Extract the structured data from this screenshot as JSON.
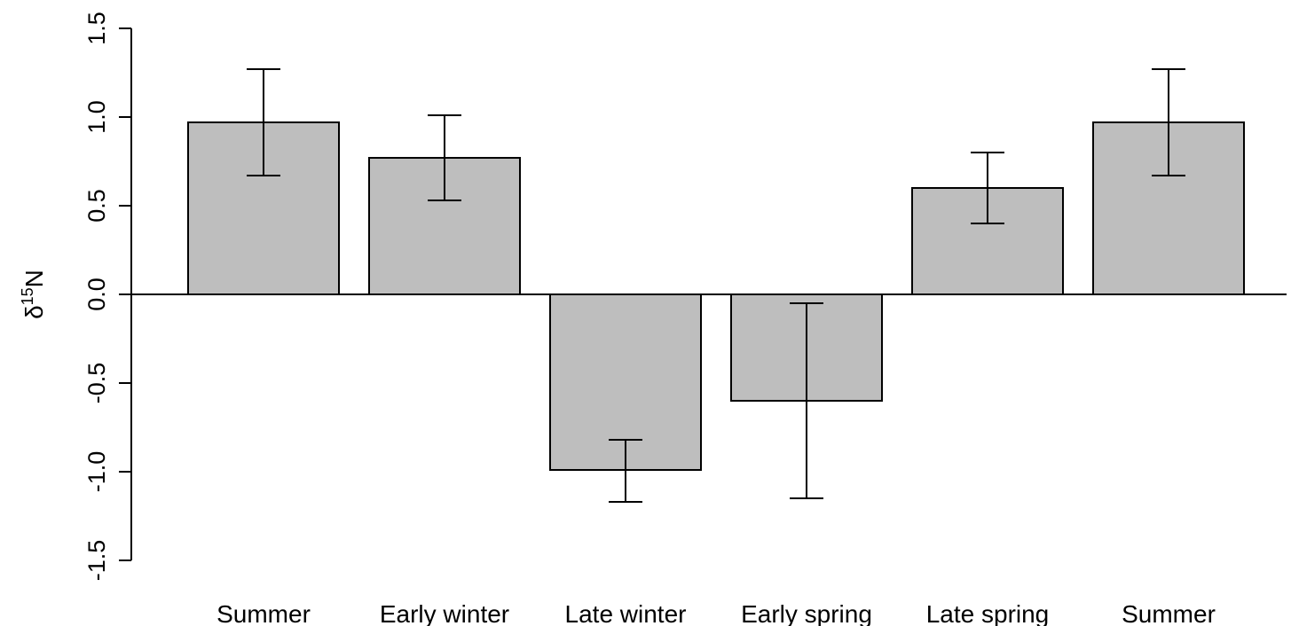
{
  "chart_data": {
    "type": "bar",
    "title": "",
    "xlabel": "",
    "ylabel": {
      "base": "δ",
      "superscript": "15",
      "suffix": "N"
    },
    "ylim": [
      -1.5,
      1.5
    ],
    "yticks": [
      -1.5,
      -1.0,
      -0.5,
      0.0,
      0.5,
      1.0,
      1.5
    ],
    "ytick_labels": [
      "-1.5",
      "-1.0",
      "-0.5",
      "0.0",
      "0.5",
      "1.0",
      "1.5"
    ],
    "categories": [
      "Summer",
      "Early winter",
      "Late winter",
      "Early spring",
      "Late spring",
      "Summer"
    ],
    "values": [
      0.97,
      0.77,
      -0.99,
      -0.6,
      0.6,
      0.97
    ],
    "error_lower": [
      0.67,
      0.53,
      -1.17,
      -1.15,
      0.4,
      0.67
    ],
    "error_upper": [
      1.27,
      1.01,
      -0.82,
      -0.05,
      0.8,
      1.27
    ],
    "grid": false,
    "zero_line": true,
    "colors": {
      "bar_fill": "#bebebe",
      "bar_stroke": "#000000",
      "axis": "#000000",
      "text": "#000000"
    }
  }
}
